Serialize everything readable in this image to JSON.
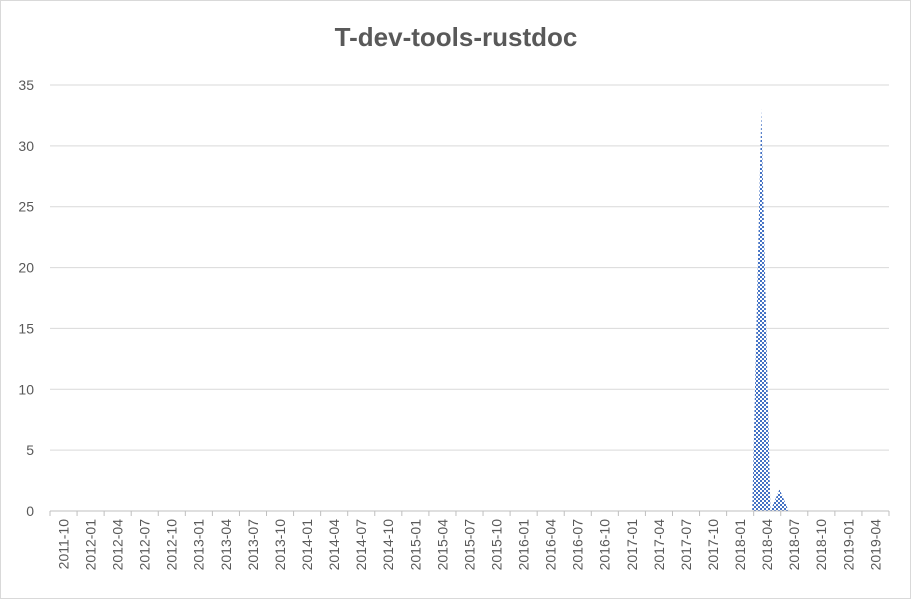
{
  "chart_data": {
    "type": "area",
    "title": "T-dev-tools-rustdoc",
    "xlabel": "",
    "ylabel": "",
    "ylim": [
      0,
      35
    ],
    "yticks": [
      0,
      5,
      10,
      15,
      20,
      25,
      30,
      35
    ],
    "grid": true,
    "legend": "none",
    "x_tick_labels": [
      "2011-10",
      "2012-01",
      "2012-04",
      "2012-07",
      "2012-10",
      "2013-01",
      "2013-04",
      "2013-07",
      "2013-10",
      "2014-01",
      "2014-04",
      "2014-07",
      "2014-10",
      "2015-01",
      "2015-04",
      "2015-07",
      "2015-10",
      "2016-01",
      "2016-04",
      "2016-07",
      "2016-10",
      "2017-01",
      "2017-04",
      "2017-07",
      "2017-10",
      "2018-01",
      "2018-04",
      "2018-07",
      "2018-10",
      "2019-01",
      "2019-04"
    ],
    "x": [
      "2011-10",
      "2011-11",
      "2011-12",
      "2012-01",
      "2012-02",
      "2012-03",
      "2012-04",
      "2012-05",
      "2012-06",
      "2012-07",
      "2012-08",
      "2012-09",
      "2012-10",
      "2012-11",
      "2012-12",
      "2013-01",
      "2013-02",
      "2013-03",
      "2013-04",
      "2013-05",
      "2013-06",
      "2013-07",
      "2013-08",
      "2013-09",
      "2013-10",
      "2013-11",
      "2013-12",
      "2014-01",
      "2014-02",
      "2014-03",
      "2014-04",
      "2014-05",
      "2014-06",
      "2014-07",
      "2014-08",
      "2014-09",
      "2014-10",
      "2014-11",
      "2014-12",
      "2015-01",
      "2015-02",
      "2015-03",
      "2015-04",
      "2015-05",
      "2015-06",
      "2015-07",
      "2015-08",
      "2015-09",
      "2015-10",
      "2015-11",
      "2015-12",
      "2016-01",
      "2016-02",
      "2016-03",
      "2016-04",
      "2016-05",
      "2016-06",
      "2016-07",
      "2016-08",
      "2016-09",
      "2016-10",
      "2016-11",
      "2016-12",
      "2017-01",
      "2017-02",
      "2017-03",
      "2017-04",
      "2017-05",
      "2017-06",
      "2017-07",
      "2017-08",
      "2017-09",
      "2017-10",
      "2017-11",
      "2017-12",
      "2018-01",
      "2018-02",
      "2018-03",
      "2018-04",
      "2018-05",
      "2018-06",
      "2018-07",
      "2018-08",
      "2018-09",
      "2018-10",
      "2018-11",
      "2018-12",
      "2019-01",
      "2019-02",
      "2019-03",
      "2019-04",
      "2019-05",
      "2019-06"
    ],
    "series": [
      {
        "values": [
          0,
          0,
          0,
          0,
          0,
          0,
          0,
          0,
          0,
          0,
          0,
          0,
          0,
          0,
          0,
          0,
          0,
          0,
          0,
          0,
          0,
          0,
          0,
          0,
          0,
          0,
          0,
          0,
          0,
          0,
          0,
          0,
          0,
          0,
          0,
          0,
          0,
          0,
          0,
          0,
          0,
          0,
          0,
          0,
          0,
          0,
          0,
          0,
          0,
          0,
          0,
          0,
          0,
          0,
          0,
          0,
          0,
          0,
          0,
          0,
          0,
          0,
          0,
          0,
          0,
          0,
          0,
          0,
          0,
          0,
          0,
          0,
          0,
          0,
          0,
          0,
          0,
          0,
          33,
          0,
          1.8,
          0,
          0,
          0,
          0,
          0,
          0,
          0,
          0,
          0,
          0,
          0,
          0
        ],
        "color": "#4472c4"
      }
    ]
  }
}
